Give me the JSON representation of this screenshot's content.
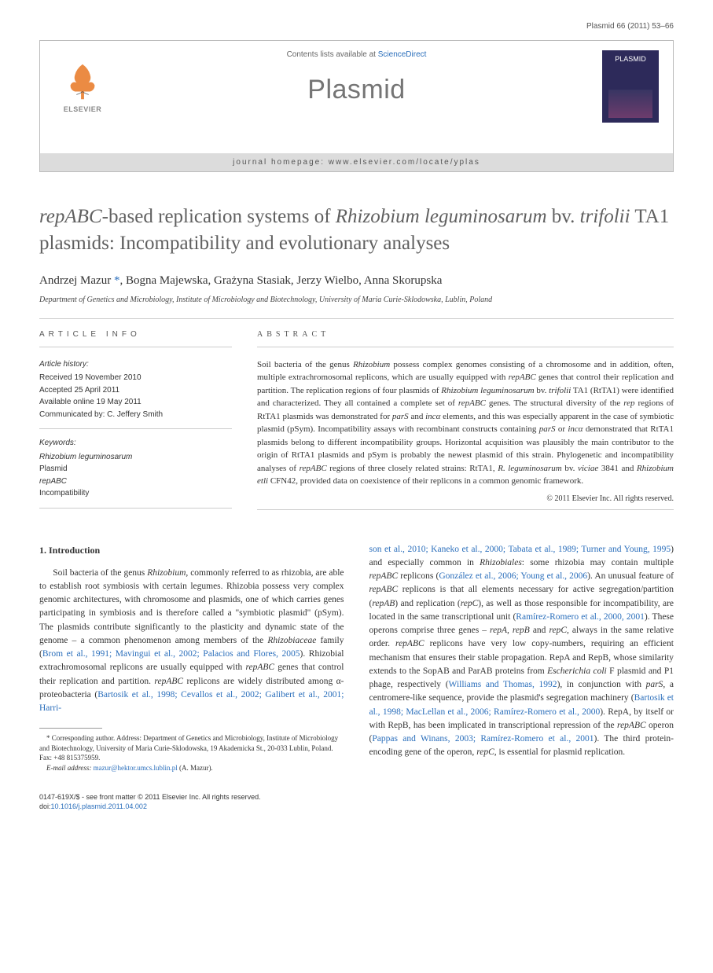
{
  "page_header": "Plasmid 66 (2011) 53–66",
  "journal_box": {
    "contents_prefix": "Contents lists available at ",
    "contents_link": "ScienceDirect",
    "journal_name": "Plasmid",
    "homepage_prefix": "journal homepage: ",
    "homepage_url": "www.elsevier.com/locate/yplas",
    "logo_text": "ELSEVIER",
    "cover_title": "PLASMID"
  },
  "article": {
    "title_html": "<span style='font-style:italic'>repABC</span>-based replication systems of <span style='font-style:italic'>Rhizobium leguminosarum</span> bv. <span style='font-style:italic'>trifolii</span> TA1 plasmids: Incompatibility and evolutionary analyses",
    "authors": [
      {
        "name": "Andrzej Mazur",
        "corresponding": true
      },
      {
        "name": "Bogna Majewska"
      },
      {
        "name": "Grażyna Stasiak"
      },
      {
        "name": "Jerzy Wielbo"
      },
      {
        "name": "Anna Skorupska"
      }
    ],
    "affiliation": "Department of Genetics and Microbiology, Institute of Microbiology and Biotechnology, University of Maria Curie-Sklodowska, Lublin, Poland"
  },
  "article_info": {
    "label": "ARTICLE INFO",
    "history_label": "Article history:",
    "history": [
      "Received 19 November 2010",
      "Accepted 25 April 2011",
      "Available online 19 May 2011",
      "Communicated by: C. Jeffery Smith"
    ],
    "keywords_label": "Keywords:",
    "keywords": [
      "Rhizobium leguminosarum",
      "Plasmid",
      "repABC",
      "Incompatibility"
    ]
  },
  "abstract": {
    "label": "ABSTRACT",
    "text_html": "Soil bacteria of the genus <span class='italic'>Rhizobium</span> possess complex genomes consisting of a chromosome and in addition, often, multiple extrachromosomal replicons, which are usually equipped with <span class='italic'>repABC</span> genes that control their replication and partition. The replication regions of four plasmids of <span class='italic'>Rhizobium leguminosarum</span> bv. <span class='italic'>trifolii</span> TA1 (RtTA1) were identified and characterized. They all contained a complete set of <span class='italic'>repABC</span> genes. The structural diversity of the <span class='italic'>rep</span> regions of RtTA1 plasmids was demonstrated for <span class='italic'>parS</span> and <span class='italic'>incα</span> elements, and this was especially apparent in the case of symbiotic plasmid (pSym). Incompatibility assays with recombinant constructs containing <span class='italic'>parS</span> or <span class='italic'>incα</span> demonstrated that RtTA1 plasmids belong to different incompatibility groups. Horizontal acquisition was plausibly the main contributor to the origin of RtTA1 plasmids and pSym is probably the newest plasmid of this strain. Phylogenetic and incompatibility analyses of <span class='italic'>repABC</span> regions of three closely related strains: RtTA1, <span class='italic'>R. leguminosarum</span> bv. <span class='italic'>viciae</span> 3841 and <span class='italic'>Rhizobium etli</span> CFN42, provided data on coexistence of their replicons in a common genomic framework.",
    "copyright": "© 2011 Elsevier Inc. All rights reserved."
  },
  "body": {
    "section_number": "1.",
    "section_title": "Introduction",
    "col1_html": "Soil bacteria of the genus <span style='font-style:italic'>Rhizobium</span>, commonly referred to as rhizobia, are able to establish root symbiosis with certain legumes. Rhizobia possess very complex genomic architectures, with chromosome and plasmids, one of which carries genes participating in symbiosis and is therefore called a \"symbiotic plasmid\" (pSym). The plasmids contribute significantly to the plasticity and dynamic state of the genome – a common phenomenon among members of the <span style='font-style:italic'>Rhizobiaceae</span> family (<a href='#'>Brom et al., 1991; Mavingui et al., 2002; Palacios and Flores, 2005</a>). Rhizobial extrachromosomal replicons are usually equipped with <span style='font-style:italic'>repABC</span> genes that control their replication and partition. <span style='font-style:italic'>repABC</span> replicons are widely distributed among α-proteobacteria (<a href='#'>Bartosik et al., 1998; Cevallos et al., 2002; Galibert et al., 2001; Harri-</a>",
    "col2_html": "<a href='#'>son et al., 2010; Kaneko et al., 2000; Tabata et al., 1989; Turner and Young, 1995</a>) and especially common in <span style='font-style:italic'>Rhizobiales</span>: some rhizobia may contain multiple <span style='font-style:italic'>repABC</span> replicons (<a href='#'>González et al., 2006; Young et al., 2006</a>). An unusual feature of <span style='font-style:italic'>repABC</span> replicons is that all elements necessary for active segregation/partition (<span style='font-style:italic'>repAB</span>) and replication (<span style='font-style:italic'>repC</span>), as well as those responsible for incompatibility, are located in the same transcriptional unit (<a href='#'>Ramírez-Romero et al., 2000, 2001</a>). These operons comprise three genes – <span style='font-style:italic'>repA</span>, <span style='font-style:italic'>repB</span> and <span style='font-style:italic'>repC</span>, always in the same relative order. <span style='font-style:italic'>repABC</span> replicons have very low copy-numbers, requiring an efficient mechanism that ensures their stable propagation. RepA and RepB, whose similarity extends to the SopAB and ParAB proteins from <span style='font-style:italic'>Escherichia coli</span> F plasmid and P1 phage, respectively (<a href='#'>Williams and Thomas, 1992</a>), in conjunction with <span style='font-style:italic'>parS</span>, a centromere-like sequence, provide the plasmid's segregation machinery (<a href='#'>Bartosik et al., 1998; MacLellan et al., 2006; Ramírez-Romero et al., 2000</a>). RepA, by itself or with RepB, has been implicated in transcriptional repression of the <span style='font-style:italic'>repABC</span> operon (<a href='#'>Pappas and Winans, 2003; Ramírez-Romero et al., 2001</a>). The third protein-encoding gene of the operon, <span style='font-style:italic'>repC</span>, is essential for plasmid replication."
  },
  "footnote": {
    "corresponding": "* Corresponding author. Address: Department of Genetics and Microbiology, Institute of Microbiology and Biotechnology, University of Maria Curie-Sklodowska, 19 Akademicka St., 20-033 Lublin, Poland. Fax: +48 815375959.",
    "email_label": "E-mail address:",
    "email": "mazur@hektor.umcs.lublin.pl",
    "email_suffix": "(A. Mazur)."
  },
  "bottom": {
    "line1": "0147-619X/$ - see front matter © 2011 Elsevier Inc. All rights reserved.",
    "doi_prefix": "doi:",
    "doi": "10.1016/j.plasmid.2011.04.002"
  },
  "colors": {
    "link": "#2a6ebb",
    "title_gray": "#606060",
    "journal_gray": "#757575",
    "border": "#cccccc"
  }
}
